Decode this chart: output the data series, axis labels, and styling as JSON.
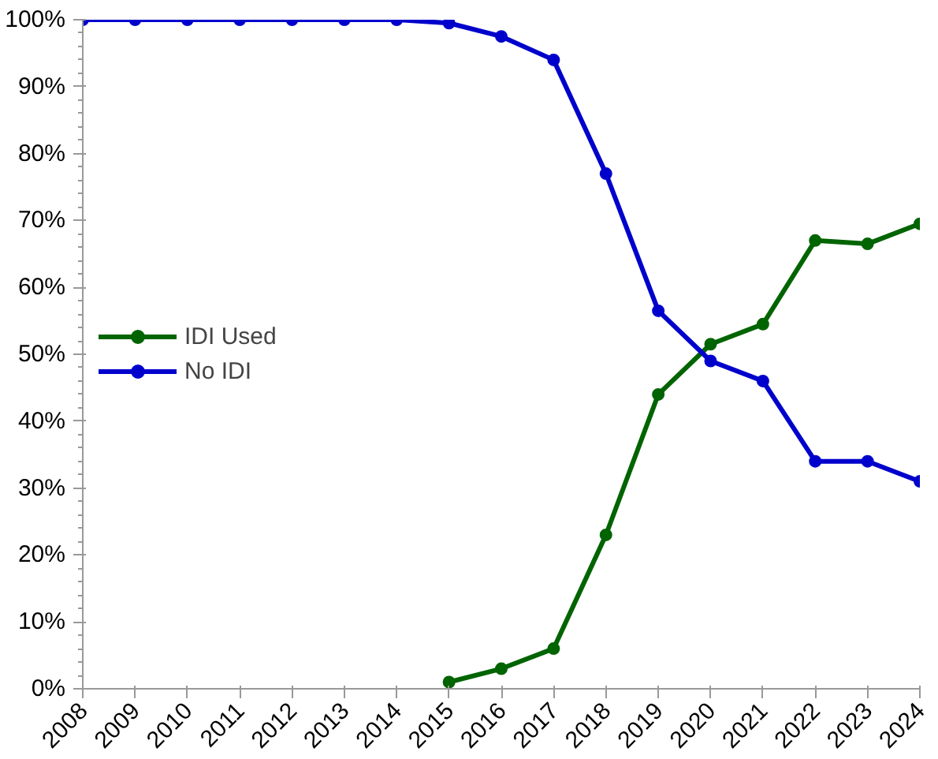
{
  "chart_data": {
    "type": "line",
    "x": [
      2008,
      2009,
      2010,
      2011,
      2012,
      2013,
      2014,
      2015,
      2016,
      2017,
      2018,
      2019,
      2020,
      2021,
      2022,
      2023,
      2024
    ],
    "series": [
      {
        "name": "IDI Used",
        "color": "#006400",
        "values": [
          null,
          null,
          null,
          null,
          null,
          null,
          null,
          1,
          3,
          6,
          23,
          44,
          51.5,
          54.5,
          67,
          66.5,
          69.5
        ]
      },
      {
        "name": "No IDI",
        "color": "#0000cc",
        "values": [
          100,
          100,
          100,
          100,
          100,
          100,
          100,
          99.5,
          97.5,
          94,
          77,
          56.5,
          49,
          46,
          34,
          34,
          31
        ]
      }
    ],
    "xlim": [
      2008,
      2024
    ],
    "xticks": [
      2008,
      2009,
      2010,
      2011,
      2012,
      2013,
      2014,
      2015,
      2016,
      2017,
      2018,
      2019,
      2020,
      2021,
      2022,
      2023,
      2024
    ],
    "ylim": [
      0,
      100
    ],
    "yticks": [
      {
        "value": 0,
        "label": "0%"
      },
      {
        "value": 10,
        "label": "10%"
      },
      {
        "value": 20,
        "label": "20%"
      },
      {
        "value": 30,
        "label": "30%"
      },
      {
        "value": 40,
        "label": "40%"
      },
      {
        "value": 50,
        "label": "50%"
      },
      {
        "value": 60,
        "label": "60%"
      },
      {
        "value": 70,
        "label": "70%"
      },
      {
        "value": 80,
        "label": "80%"
      },
      {
        "value": 90,
        "label": "90%"
      },
      {
        "value": 100,
        "label": "100%"
      }
    ],
    "legend": "left",
    "marker": "circle",
    "line_style": "solid",
    "grid": false
  }
}
